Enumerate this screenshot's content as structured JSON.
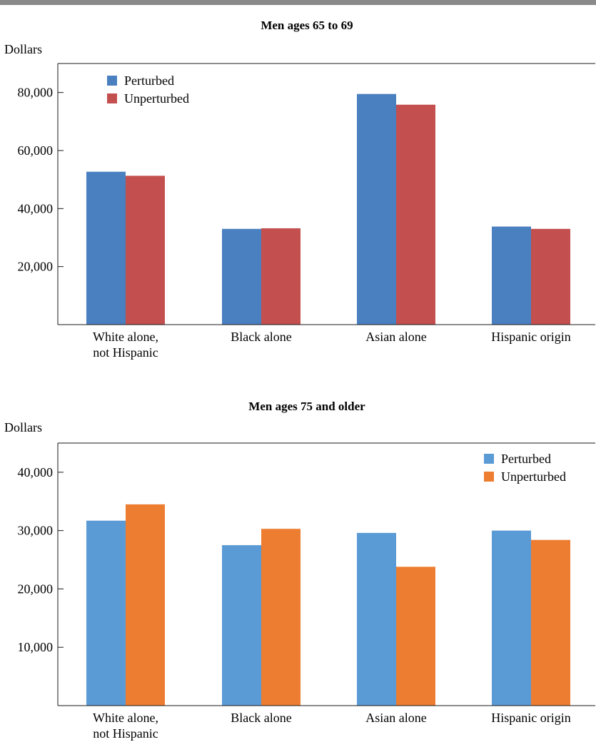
{
  "colors": {
    "top_rule": "#8a8a8a",
    "axis": "#1a1a1a"
  },
  "chart_data": [
    {
      "type": "bar",
      "title": "Men ages 65 to 69",
      "ylabel": "Dollars",
      "xlabel": "",
      "categories": [
        [
          "White alone,",
          "not Hispanic"
        ],
        [
          "Black alone"
        ],
        [
          "Asian alone"
        ],
        [
          "Hispanic origin"
        ]
      ],
      "series": [
        {
          "name": "Perturbed",
          "color": "#4a80c0",
          "values": [
            52700,
            33000,
            79500,
            33800
          ]
        },
        {
          "name": "Unperturbed",
          "color": "#c34f4e",
          "values": [
            51300,
            33200,
            75800,
            33000
          ]
        }
      ],
      "ylim": [
        0,
        90000
      ],
      "yticks": [
        20000,
        40000,
        60000,
        80000
      ],
      "ytick_labels": [
        "20,000",
        "40,000",
        "60,000",
        "80,000"
      ],
      "legend": "top-left",
      "grid": false
    },
    {
      "type": "bar",
      "title": "Men ages 75 and older",
      "ylabel": "Dollars",
      "xlabel": "",
      "categories": [
        [
          "White alone,",
          "not Hispanic"
        ],
        [
          "Black alone"
        ],
        [
          "Asian alone"
        ],
        [
          "Hispanic origin"
        ]
      ],
      "series": [
        {
          "name": "Perturbed",
          "color": "#5b9bd5",
          "values": [
            31700,
            27500,
            29600,
            30000
          ]
        },
        {
          "name": "Unperturbed",
          "color": "#ed7d31",
          "values": [
            34500,
            30300,
            23800,
            28400
          ]
        }
      ],
      "ylim": [
        0,
        45000
      ],
      "yticks": [
        10000,
        20000,
        30000,
        40000
      ],
      "ytick_labels": [
        "10,000",
        "20,000",
        "30,000",
        "40,000"
      ],
      "legend": "top-right",
      "grid": false
    }
  ]
}
